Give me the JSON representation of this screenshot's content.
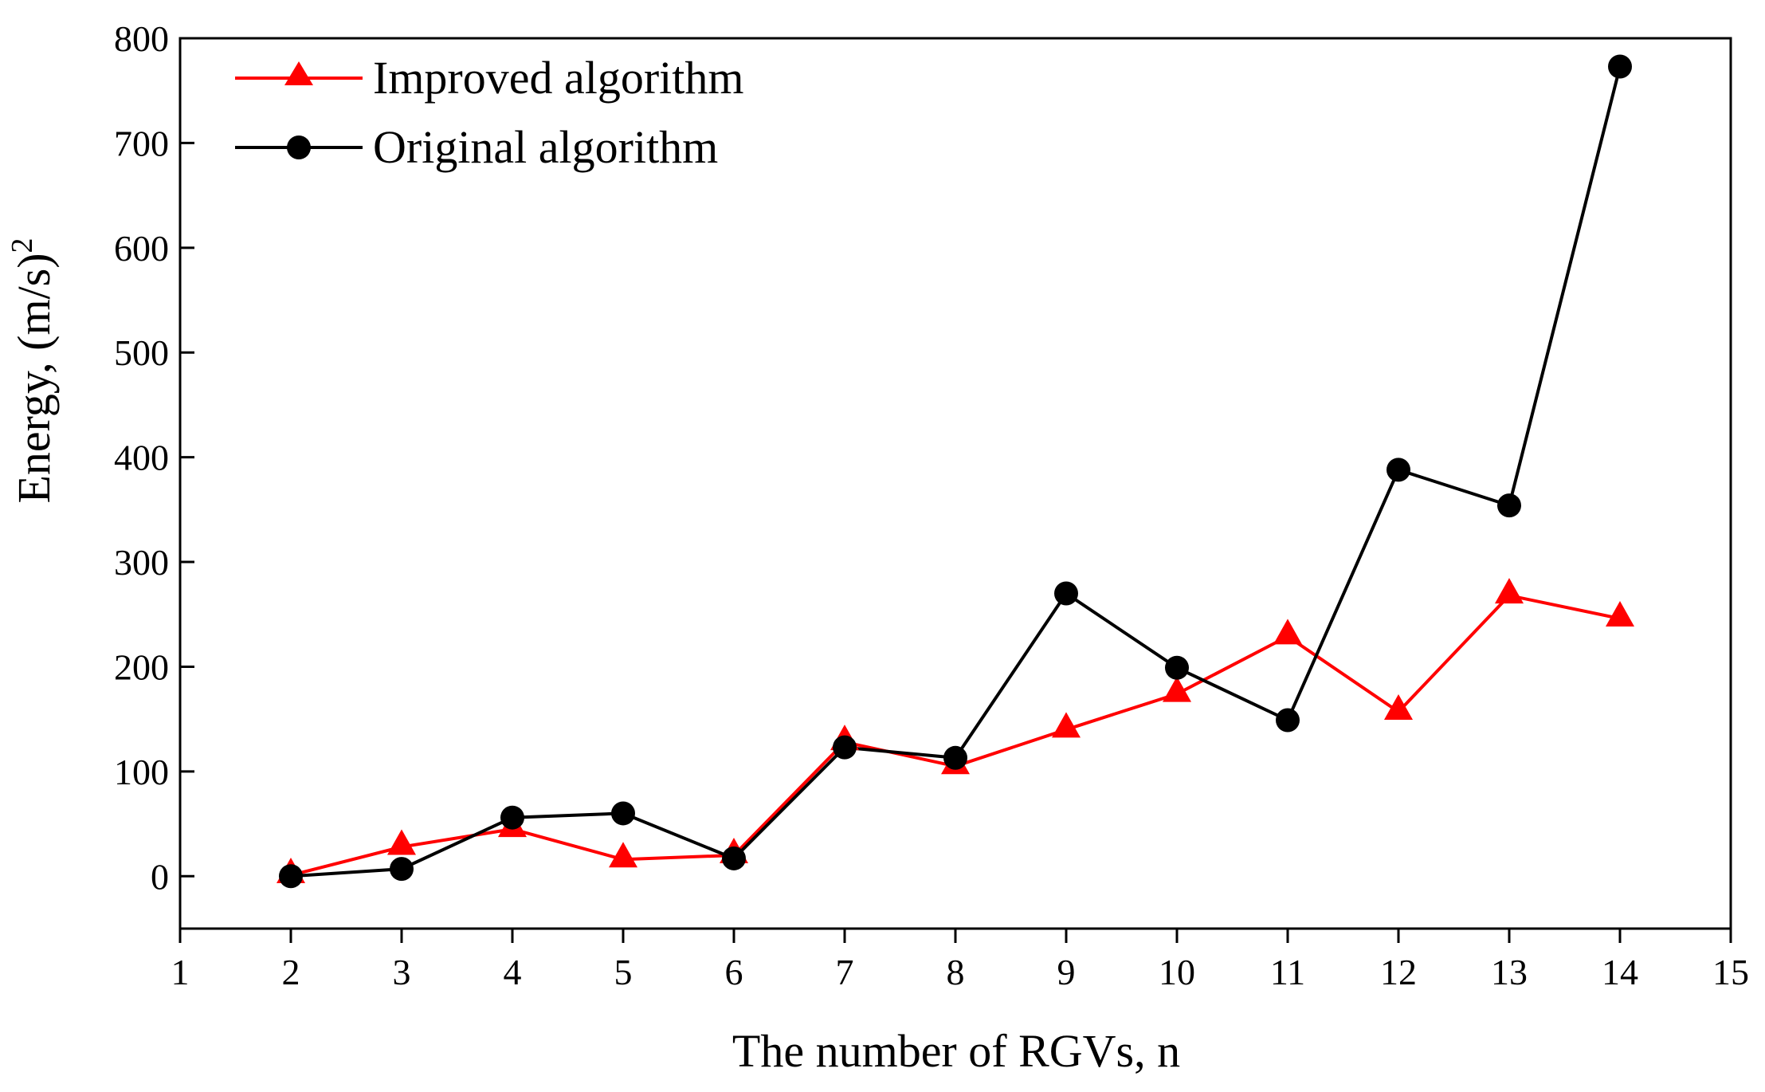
{
  "chart_data": {
    "type": "line",
    "title": "",
    "xlabel": "The number of RGVs, n",
    "ylabel_main": "Energy, (m/s)",
    "ylabel_superscript": "2",
    "xlim": [
      1,
      15
    ],
    "ylim": [
      -50,
      800
    ],
    "x_ticks": [
      1,
      2,
      3,
      4,
      5,
      6,
      7,
      8,
      9,
      10,
      11,
      12,
      13,
      14,
      15
    ],
    "y_ticks": [
      0,
      100,
      200,
      300,
      400,
      500,
      600,
      700,
      800
    ],
    "legend_position": "top-left",
    "grid": false,
    "x": [
      2,
      3,
      4,
      5,
      6,
      7,
      8,
      9,
      10,
      11,
      12,
      13,
      14
    ],
    "series": [
      {
        "name": "Improved algorithm",
        "color": "#ff0000",
        "marker": "triangle",
        "values": [
          1,
          28,
          45,
          16,
          20,
          128,
          105,
          140,
          174,
          229,
          157,
          268,
          246
        ]
      },
      {
        "name": "Original algorithm",
        "color": "#000000",
        "marker": "circle",
        "values": [
          0,
          7,
          56,
          60,
          17,
          123,
          113,
          270,
          199,
          149,
          388,
          354,
          773
        ]
      }
    ]
  }
}
